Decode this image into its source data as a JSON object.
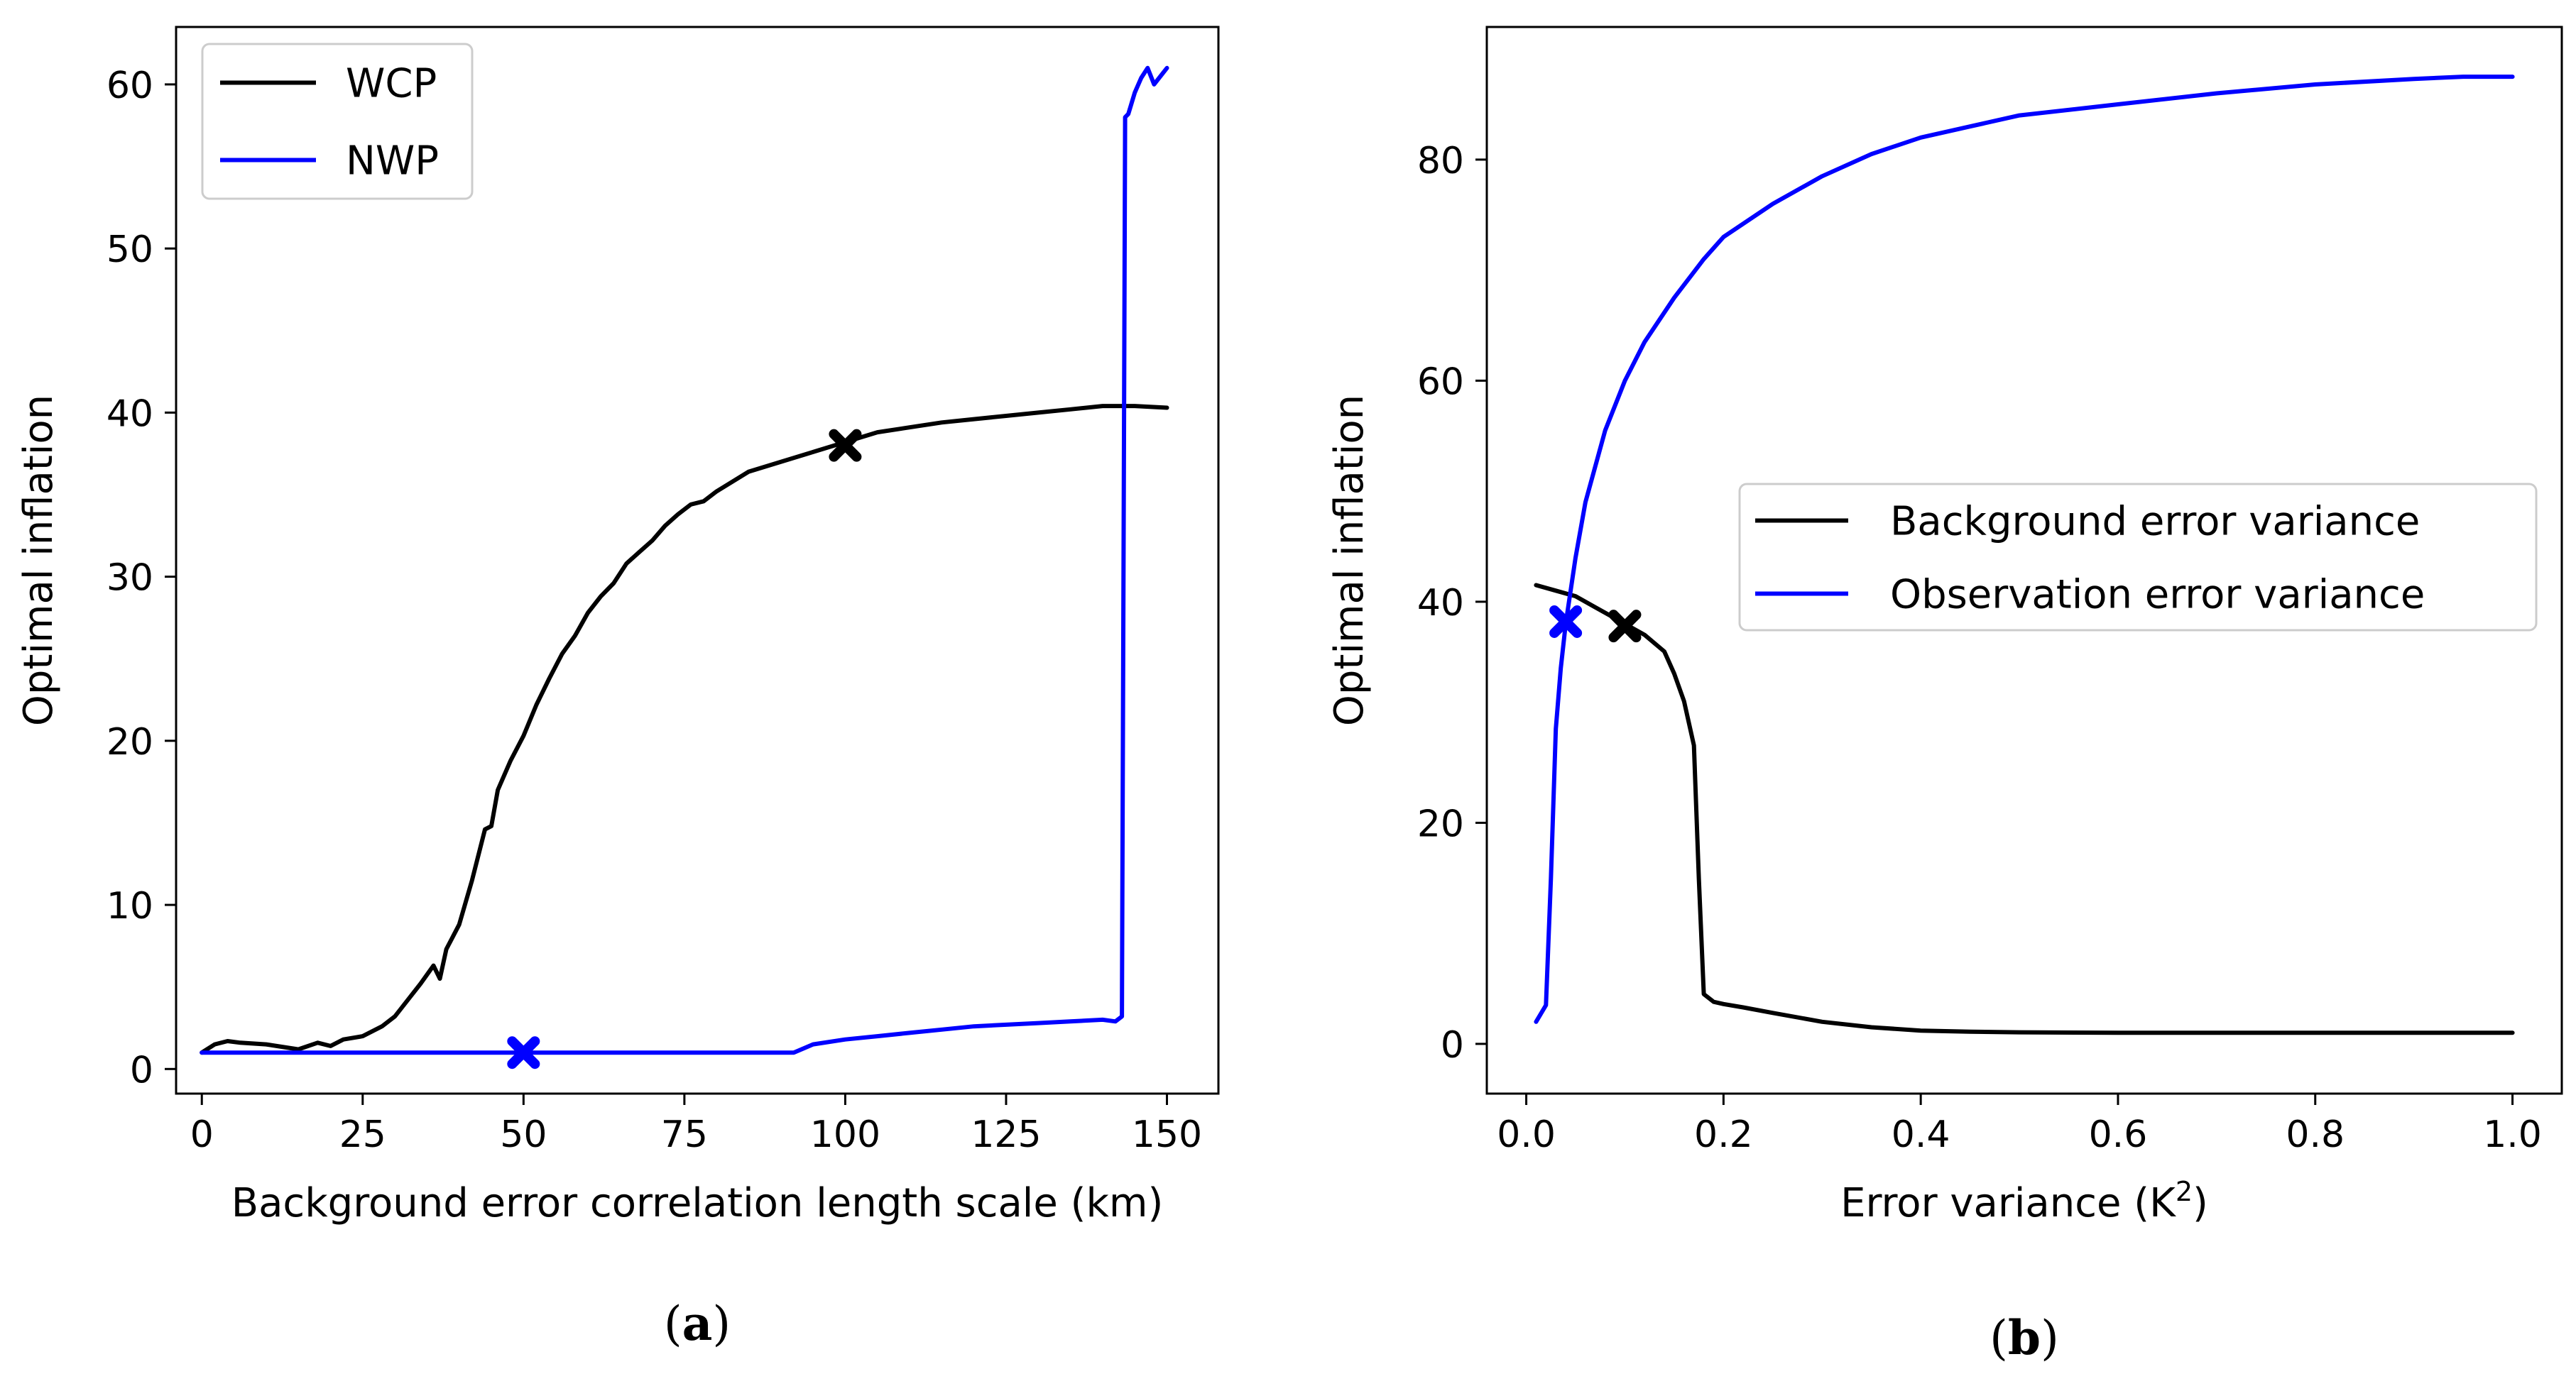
{
  "chart_data": [
    {
      "id": "a",
      "type": "line",
      "caption": {
        "open": "(",
        "letter": "a",
        "close": ")"
      },
      "xlabel": "Background error correlation length scale (km)",
      "ylabel": "Optimal inflation",
      "xlim": [
        -4,
        158
      ],
      "ylim": [
        -1.5,
        63.5
      ],
      "xticks": [
        0,
        25,
        50,
        75,
        100,
        125,
        150
      ],
      "xtick_labels": [
        "0",
        "25",
        "50",
        "75",
        "100",
        "125",
        "150"
      ],
      "yticks": [
        0,
        10,
        20,
        30,
        40,
        50,
        60
      ],
      "ytick_labels": [
        "0",
        "10",
        "20",
        "30",
        "40",
        "50",
        "60"
      ],
      "grid": false,
      "legend_position": "top-left",
      "series": [
        {
          "name": "WCP",
          "color": "#000000",
          "x": [
            0,
            2,
            4,
            6,
            10,
            15,
            18,
            20,
            22,
            25,
            28,
            30,
            32,
            34,
            36,
            37,
            38,
            40,
            42,
            44,
            45,
            46,
            48,
            50,
            52,
            54,
            56,
            58,
            60,
            62,
            64,
            66,
            68,
            70,
            72,
            74,
            76,
            78,
            80,
            85,
            90,
            95,
            100,
            105,
            110,
            115,
            120,
            125,
            130,
            135,
            140,
            145,
            150
          ],
          "y": [
            1.0,
            1.5,
            1.7,
            1.6,
            1.5,
            1.2,
            1.6,
            1.4,
            1.8,
            2.0,
            2.6,
            3.2,
            4.2,
            5.2,
            6.3,
            5.5,
            7.3,
            8.8,
            11.5,
            14.6,
            14.8,
            17.0,
            18.8,
            20.3,
            22.2,
            23.8,
            25.3,
            26.4,
            27.8,
            28.8,
            29.6,
            30.8,
            31.5,
            32.2,
            33.1,
            33.8,
            34.4,
            34.6,
            35.2,
            36.4,
            37.0,
            37.6,
            38.2,
            38.8,
            39.1,
            39.4,
            39.6,
            39.8,
            40.0,
            40.2,
            40.4,
            40.4,
            40.3
          ],
          "marker": {
            "x": 100,
            "y": 38
          }
        },
        {
          "name": "NWP",
          "color": "#0000ff",
          "x": [
            0,
            92,
            95,
            100,
            105,
            110,
            115,
            120,
            125,
            130,
            135,
            140,
            142,
            143,
            143.5,
            144,
            145,
            146,
            147,
            148,
            149,
            150
          ],
          "y": [
            1.0,
            1.0,
            1.5,
            1.8,
            2.0,
            2.2,
            2.4,
            2.6,
            2.7,
            2.8,
            2.9,
            3.0,
            2.9,
            3.2,
            58.0,
            58.2,
            59.5,
            60.4,
            61.0,
            60.0,
            60.5,
            61.0
          ],
          "marker": {
            "x": 50,
            "y": 1
          }
        }
      ]
    },
    {
      "id": "b",
      "type": "line",
      "caption": {
        "open": "(",
        "letter": "b",
        "close": ")"
      },
      "xlabel": "Error variance (K",
      "xlabel_superscript": "2",
      "xlabel_suffix": ")",
      "ylabel": "Optimal inflation",
      "xlim": [
        -0.04,
        1.05
      ],
      "ylim": [
        -4.5,
        92
      ],
      "xticks": [
        0.0,
        0.2,
        0.4,
        0.6,
        0.8,
        1.0
      ],
      "xtick_labels": [
        "0.0",
        "0.2",
        "0.4",
        "0.6",
        "0.8",
        "1.0"
      ],
      "yticks": [
        0,
        20,
        40,
        60,
        80
      ],
      "ytick_labels": [
        "0",
        "20",
        "40",
        "60",
        "80"
      ],
      "grid": false,
      "legend_position": "center-right",
      "series": [
        {
          "name": "Background error variance",
          "color": "#000000",
          "x": [
            0.01,
            0.03,
            0.05,
            0.07,
            0.09,
            0.1,
            0.12,
            0.14,
            0.15,
            0.16,
            0.17,
            0.175,
            0.18,
            0.19,
            0.2,
            0.22,
            0.25,
            0.3,
            0.35,
            0.4,
            0.45,
            0.5,
            0.6,
            0.7,
            0.8,
            0.9,
            1.0
          ],
          "y": [
            41.5,
            41.0,
            40.5,
            39.5,
            38.5,
            38.0,
            37.0,
            35.5,
            33.5,
            31.0,
            27.0,
            15.0,
            4.5,
            3.8,
            3.6,
            3.3,
            2.8,
            2.0,
            1.5,
            1.2,
            1.1,
            1.05,
            1.0,
            1.0,
            1.0,
            1.0,
            1.0
          ],
          "marker": {
            "x": 0.1,
            "y": 37.8
          }
        },
        {
          "name": "Observation error variance",
          "color": "#0000ff",
          "x": [
            0.01,
            0.02,
            0.025,
            0.03,
            0.035,
            0.04,
            0.05,
            0.06,
            0.08,
            0.1,
            0.12,
            0.15,
            0.18,
            0.2,
            0.25,
            0.3,
            0.35,
            0.4,
            0.45,
            0.5,
            0.6,
            0.7,
            0.8,
            0.9,
            0.95,
            1.0
          ],
          "y": [
            2.0,
            3.5,
            15.0,
            28.5,
            34.0,
            38.0,
            44.0,
            49.0,
            55.5,
            60.0,
            63.5,
            67.5,
            71.0,
            73.0,
            76.0,
            78.5,
            80.5,
            82.0,
            83.0,
            84.0,
            85.0,
            86.0,
            86.8,
            87.3,
            87.5,
            87.5
          ],
          "marker": {
            "x": 0.04,
            "y": 38.2
          }
        }
      ]
    }
  ]
}
